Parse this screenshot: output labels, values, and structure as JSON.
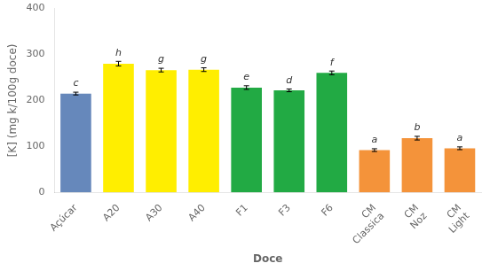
{
  "chart_data": {
    "type": "bar",
    "categories": [
      "Açúcar",
      "A20",
      "A30",
      "A40",
      "F1",
      "F3",
      "F6",
      "CM\nClassica",
      "CM\nNoz",
      "CM\nLight"
    ],
    "values": [
      215,
      280,
      266,
      267,
      228,
      222,
      260,
      92,
      118,
      96
    ],
    "errors": [
      3,
      5,
      4,
      4,
      4,
      3,
      4,
      3,
      4,
      3
    ],
    "annotations": [
      "c",
      "h",
      "g",
      "g",
      "e",
      "d",
      "f",
      "a",
      "b",
      "a"
    ],
    "colors": [
      "#6688bb",
      "#ffee00",
      "#ffee00",
      "#ffee00",
      "#22aa44",
      "#22aa44",
      "#22aa44",
      "#f4933a",
      "#f4933a",
      "#f4933a"
    ],
    "xlabel": "Doce",
    "ylabel": "[K] (mg k/100g doce)",
    "ylim": [
      0,
      400
    ],
    "yticks": [
      0,
      100,
      200,
      300,
      400
    ],
    "grid": false
  }
}
